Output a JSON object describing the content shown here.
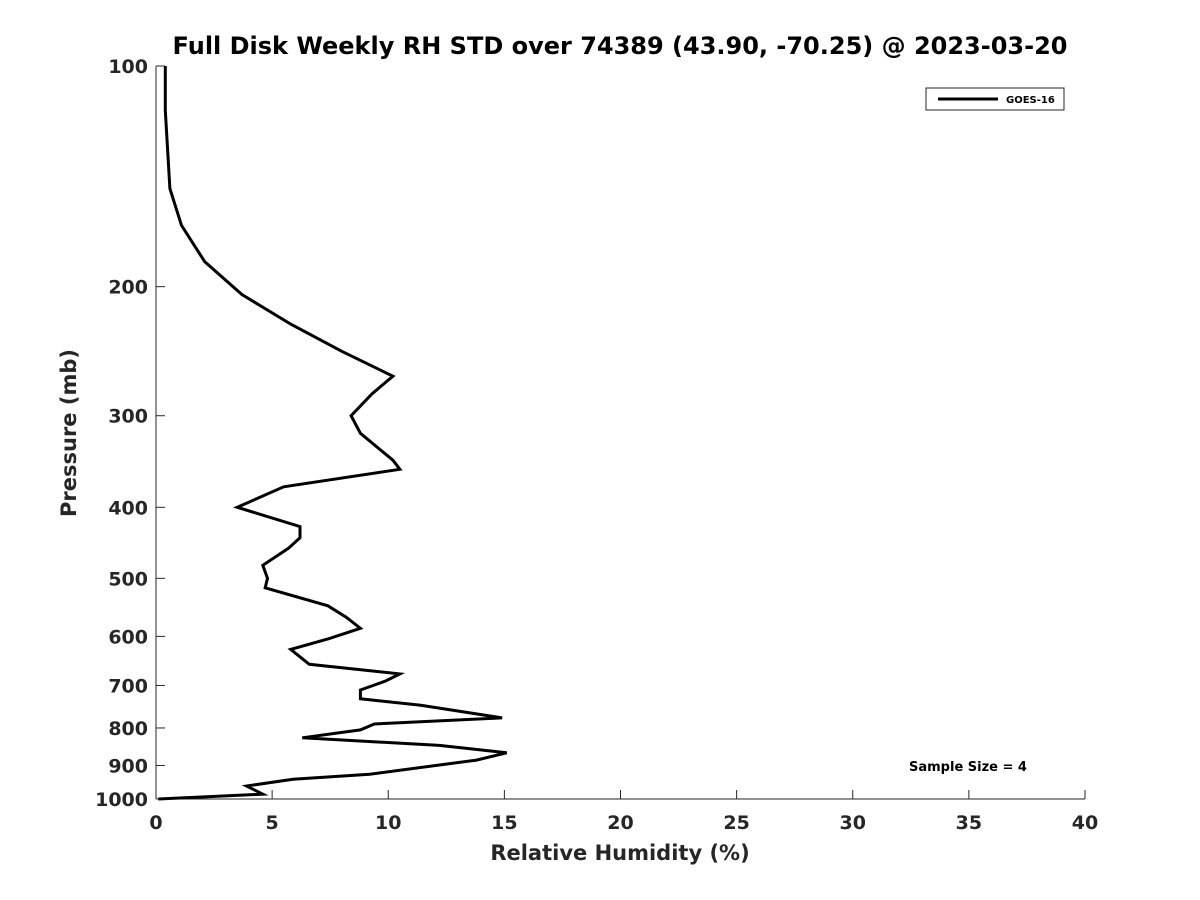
{
  "chart_data": {
    "type": "line",
    "title": "Full Disk Weekly RH STD over 74389 (43.90, -70.25) @ 2023-03-20",
    "xlabel": "Relative Humidity (%)",
    "ylabel": "Pressure (mb)",
    "xlim": [
      0,
      40
    ],
    "ylim": [
      100,
      1000
    ],
    "y_scale": "log",
    "y_reversed": true,
    "x_ticks": [
      "0",
      "5",
      "10",
      "15",
      "20",
      "25",
      "30",
      "35",
      "40"
    ],
    "y_ticks": [
      "100",
      "200",
      "300",
      "400",
      "500",
      "600",
      "700",
      "800",
      "900",
      "1000"
    ],
    "grid": false,
    "legend_position": "top-right",
    "annotation": "Sample Size = 4",
    "series": [
      {
        "name": "GOES-16",
        "color": "#000000",
        "points": [
          [
            0.4,
            100
          ],
          [
            0.4,
            115
          ],
          [
            0.5,
            130
          ],
          [
            0.6,
            147
          ],
          [
            1.1,
            165
          ],
          [
            2.1,
            185
          ],
          [
            3.7,
            205
          ],
          [
            5.8,
            225
          ],
          [
            8.0,
            245
          ],
          [
            10.2,
            265
          ],
          [
            9.3,
            280
          ],
          [
            8.4,
            300
          ],
          [
            8.8,
            317
          ],
          [
            10.2,
            345
          ],
          [
            10.5,
            355
          ],
          [
            5.5,
            375
          ],
          [
            3.5,
            400
          ],
          [
            6.2,
            425
          ],
          [
            6.2,
            440
          ],
          [
            5.7,
            455
          ],
          [
            4.6,
            480
          ],
          [
            4.8,
            500
          ],
          [
            4.7,
            515
          ],
          [
            7.4,
            545
          ],
          [
            8.2,
            565
          ],
          [
            8.8,
            585
          ],
          [
            7.4,
            605
          ],
          [
            5.8,
            625
          ],
          [
            6.6,
            655
          ],
          [
            10.5,
            675
          ],
          [
            9.9,
            690
          ],
          [
            8.8,
            710
          ],
          [
            8.8,
            730
          ],
          [
            11.4,
            745
          ],
          [
            14.9,
            775
          ],
          [
            9.4,
            790
          ],
          [
            8.8,
            805
          ],
          [
            6.3,
            825
          ],
          [
            12.2,
            845
          ],
          [
            15.1,
            865
          ],
          [
            13.8,
            885
          ],
          [
            9.2,
            925
          ],
          [
            5.9,
            940
          ],
          [
            3.9,
            960
          ],
          [
            4.6,
            985
          ],
          [
            0.1,
            1000
          ]
        ]
      }
    ]
  }
}
